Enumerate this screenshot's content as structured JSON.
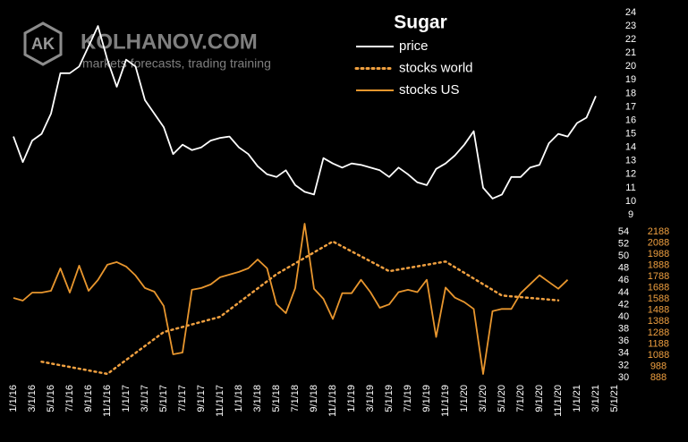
{
  "watermark": {
    "logo": "AK",
    "brand": "KOLHANOV.COM",
    "tagline": "markets forecasts, trading training"
  },
  "chart_data": [
    {
      "type": "line",
      "title": "Sugar",
      "xlim": [
        "2016-01-01",
        "2021-05-01"
      ],
      "ylim": [
        9,
        24
      ],
      "yticks": [
        9,
        10,
        11,
        12,
        13,
        14,
        15,
        16,
        17,
        18,
        19,
        20,
        21,
        22,
        23,
        24
      ],
      "series": [
        {
          "name": "price",
          "color": "#ffffff",
          "style": "solid",
          "x": [
            "2016-01-01",
            "2016-02-01",
            "2016-03-01",
            "2016-04-01",
            "2016-05-01",
            "2016-06-01",
            "2016-07-01",
            "2016-08-01",
            "2016-09-01",
            "2016-10-01",
            "2016-11-01",
            "2016-12-01",
            "2017-01-01",
            "2017-02-01",
            "2017-03-01",
            "2017-04-01",
            "2017-05-01",
            "2017-06-01",
            "2017-07-01",
            "2017-08-01",
            "2017-09-01",
            "2017-10-01",
            "2017-11-01",
            "2017-12-01",
            "2018-01-01",
            "2018-02-01",
            "2018-03-01",
            "2018-04-01",
            "2018-05-01",
            "2018-06-01",
            "2018-07-01",
            "2018-08-01",
            "2018-09-01",
            "2018-10-01",
            "2018-11-01",
            "2018-12-01",
            "2019-01-01",
            "2019-02-01",
            "2019-03-01",
            "2019-04-01",
            "2019-05-01",
            "2019-06-01",
            "2019-07-01",
            "2019-08-01",
            "2019-09-01",
            "2019-10-01",
            "2019-11-01",
            "2019-12-01",
            "2020-01-01",
            "2020-02-01",
            "2020-03-01",
            "2020-04-01",
            "2020-05-01",
            "2020-06-01",
            "2020-07-01",
            "2020-08-01",
            "2020-09-01",
            "2020-10-01",
            "2020-11-01",
            "2020-12-01",
            "2021-01-01",
            "2021-02-01",
            "2021-03-01"
          ],
          "values": [
            14.8,
            12.9,
            14.5,
            15.0,
            16.5,
            19.5,
            19.5,
            20.0,
            21.5,
            23.0,
            20.5,
            18.5,
            20.5,
            20.0,
            17.5,
            16.5,
            15.5,
            13.5,
            14.2,
            13.8,
            14.0,
            14.5,
            14.7,
            14.8,
            14.0,
            13.5,
            12.6,
            12.0,
            11.8,
            12.3,
            11.2,
            10.7,
            10.5,
            13.2,
            12.8,
            12.5,
            12.8,
            12.7,
            12.5,
            12.3,
            11.8,
            12.5,
            12.0,
            11.4,
            11.2,
            12.4,
            12.8,
            13.4,
            14.2,
            15.2,
            11.0,
            10.2,
            10.5,
            11.8,
            11.8,
            12.5,
            12.7,
            14.3,
            15.0,
            14.8,
            15.8,
            16.2,
            17.8
          ]
        }
      ]
    },
    {
      "type": "line",
      "xlim": [
        "2016-01-01",
        "2021-05-01"
      ],
      "xticks": [
        {
          "value": "2016-01-01",
          "label": "1/1/16"
        },
        {
          "value": "2016-03-01",
          "label": "3/1/16"
        },
        {
          "value": "2016-05-01",
          "label": "5/1/16"
        },
        {
          "value": "2016-07-01",
          "label": "7/1/16"
        },
        {
          "value": "2016-09-01",
          "label": "9/1/16"
        },
        {
          "value": "2016-11-01",
          "label": "11/1/16"
        },
        {
          "value": "2017-01-01",
          "label": "1/1/17"
        },
        {
          "value": "2017-03-01",
          "label": "3/1/17"
        },
        {
          "value": "2017-05-01",
          "label": "5/1/17"
        },
        {
          "value": "2017-07-01",
          "label": "7/1/17"
        },
        {
          "value": "2017-09-01",
          "label": "9/1/17"
        },
        {
          "value": "2017-11-01",
          "label": "11/1/17"
        },
        {
          "value": "2018-01-01",
          "label": "1/1/18"
        },
        {
          "value": "2018-03-01",
          "label": "3/1/18"
        },
        {
          "value": "2018-05-01",
          "label": "5/1/18"
        },
        {
          "value": "2018-07-01",
          "label": "7/1/18"
        },
        {
          "value": "2018-09-01",
          "label": "9/1/18"
        },
        {
          "value": "2018-11-01",
          "label": "11/1/18"
        },
        {
          "value": "2019-01-01",
          "label": "1/1/19"
        },
        {
          "value": "2019-03-01",
          "label": "3/1/19"
        },
        {
          "value": "2019-05-01",
          "label": "5/1/19"
        },
        {
          "value": "2019-07-01",
          "label": "7/1/19"
        },
        {
          "value": "2019-09-01",
          "label": "9/1/19"
        },
        {
          "value": "2019-11-01",
          "label": "11/1/19"
        },
        {
          "value": "2020-01-01",
          "label": "1/1/20"
        },
        {
          "value": "2020-03-01",
          "label": "3/1/20"
        },
        {
          "value": "2020-05-01",
          "label": "5/1/20"
        },
        {
          "value": "2020-07-01",
          "label": "7/1/20"
        },
        {
          "value": "2020-09-01",
          "label": "9/1/20"
        },
        {
          "value": "2020-11-01",
          "label": "11/1/20"
        },
        {
          "value": "2021-01-01",
          "label": "1/1/21"
        },
        {
          "value": "2021-03-01",
          "label": "3/1/21"
        },
        {
          "value": "2021-05-01",
          "label": "5/1/21"
        }
      ],
      "ylim": [
        30,
        54
      ],
      "yticks": [
        30,
        32,
        34,
        36,
        38,
        40,
        42,
        44,
        46,
        48,
        50,
        52,
        54
      ],
      "ytick_color": "#ffffff",
      "y2lim": [
        888,
        2188
      ],
      "y2ticks": [
        888,
        988,
        1088,
        1188,
        1288,
        1388,
        1488,
        1588,
        1688,
        1788,
        1888,
        1988,
        2088,
        2188
      ],
      "y2tick_color": "#f0a040",
      "series": [
        {
          "name": "stocks world",
          "color": "#f0a040",
          "style": "dotted",
          "x": [
            "2016-04-01",
            "2016-11-01",
            "2017-05-01",
            "2017-11-01",
            "2018-05-01",
            "2018-11-01",
            "2019-05-01",
            "2019-11-01",
            "2020-05-01",
            "2020-11-01"
          ],
          "values": [
            32.6,
            30.6,
            37.5,
            40.0,
            47.0,
            52.4,
            47.5,
            49.1,
            43.5,
            42.7
          ]
        },
        {
          "name": "stocks US",
          "color": "#e8962e",
          "style": "solid",
          "axis": "y2",
          "x": [
            "2016-01-01",
            "2016-02-01",
            "2016-03-01",
            "2016-04-01",
            "2016-05-01",
            "2016-06-01",
            "2016-07-01",
            "2016-08-01",
            "2016-09-01",
            "2016-10-01",
            "2016-11-01",
            "2016-12-01",
            "2017-01-01",
            "2017-02-01",
            "2017-03-01",
            "2017-04-01",
            "2017-05-01",
            "2017-06-01",
            "2017-07-01",
            "2017-08-01",
            "2017-09-01",
            "2017-10-01",
            "2017-11-01",
            "2017-12-01",
            "2018-01-01",
            "2018-02-01",
            "2018-03-01",
            "2018-04-01",
            "2018-05-01",
            "2018-06-01",
            "2018-07-01",
            "2018-08-01",
            "2018-09-01",
            "2018-10-01",
            "2018-11-01",
            "2018-12-01",
            "2019-01-01",
            "2019-02-01",
            "2019-03-01",
            "2019-04-01",
            "2019-05-01",
            "2019-06-01",
            "2019-07-01",
            "2019-08-01",
            "2019-09-01",
            "2019-10-01",
            "2019-11-01",
            "2019-12-01",
            "2020-01-01",
            "2020-02-01",
            "2020-03-01",
            "2020-04-01",
            "2020-05-01",
            "2020-06-01",
            "2020-07-01",
            "2020-08-01",
            "2020-09-01",
            "2020-10-01",
            "2020-11-01",
            "2020-12-01"
          ],
          "values": [
            1598,
            1574,
            1646,
            1646,
            1662,
            1862,
            1646,
            1886,
            1662,
            1758,
            1894,
            1918,
            1878,
            1798,
            1686,
            1654,
            1526,
            1095,
            1111,
            1670,
            1686,
            1718,
            1782,
            1806,
            1830,
            1862,
            1941,
            1862,
            1542,
            1462,
            1686,
            2260,
            1680,
            1590,
            1410,
            1640,
            1640,
            1760,
            1650,
            1510,
            1540,
            1650,
            1670,
            1650,
            1760,
            1250,
            1690,
            1600,
            1560,
            1500,
            920,
            1480,
            1500,
            1500,
            1640,
            1720,
            1800,
            1740,
            1680,
            1760
          ]
        }
      ]
    }
  ]
}
